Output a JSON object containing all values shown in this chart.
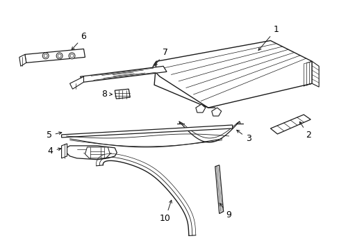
{
  "background_color": "#ffffff",
  "line_color": "#1a1a1a",
  "label_color": "#000000",
  "figsize": [
    4.89,
    3.6
  ],
  "dpi": 100,
  "font_size": 9,
  "lw": 0.9
}
